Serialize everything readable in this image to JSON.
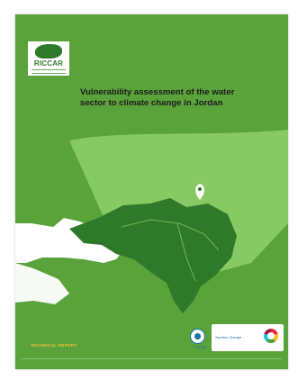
{
  "logo": {
    "name": "RICCAR"
  },
  "title": {
    "line1": "Vulnerability assessment of the water",
    "line2": "sector to climate change in Jordan"
  },
  "label": {
    "technical_report": "TECHNICAL REPORT"
  },
  "partners": {
    "un": "ESCWA",
    "brand": "Sweden Sverige"
  },
  "colors": {
    "cover_green": "#5aa23a",
    "map_dark": "#2f7a2a",
    "map_light": "#8fd06a",
    "label_yellow": "#f1c23a"
  },
  "icons": [
    "map-pin-icon",
    "un-emblem-icon",
    "partner-ring-icon"
  ]
}
